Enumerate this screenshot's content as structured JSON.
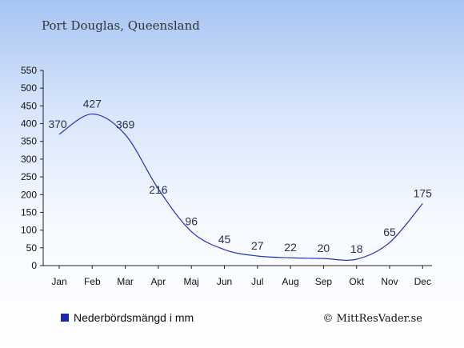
{
  "chart_data": {
    "type": "line",
    "title": "Port Douglas, Queensland",
    "categories": [
      "Jan",
      "Feb",
      "Mar",
      "Apr",
      "Maj",
      "Jun",
      "Jul",
      "Aug",
      "Sep",
      "Okt",
      "Nov",
      "Dec"
    ],
    "values": [
      370,
      427,
      369,
      216,
      96,
      45,
      27,
      22,
      20,
      18,
      65,
      175
    ],
    "yticks": [
      0,
      50,
      100,
      150,
      200,
      250,
      300,
      350,
      400,
      450,
      500,
      550
    ],
    "ylim": [
      0,
      550
    ],
    "line_color": "#2233bb",
    "legend": {
      "label": "Nederbördsmängd i mm",
      "color": "#1a2aa8",
      "position": "bottom-left"
    },
    "credit": "© MittResVader.se"
  }
}
